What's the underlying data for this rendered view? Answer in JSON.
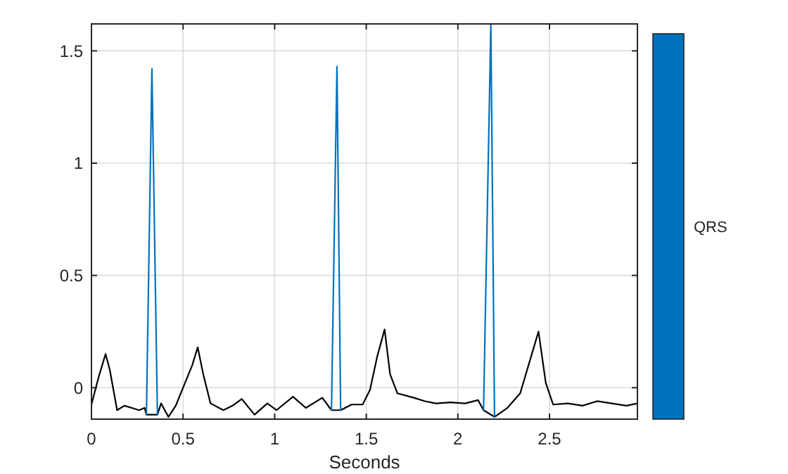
{
  "chart_data": {
    "type": "line",
    "xlabel": "Seconds",
    "xlim": [
      0,
      2.98
    ],
    "ylim": [
      -0.14,
      1.62
    ],
    "xticks": [
      0,
      0.5,
      1,
      1.5,
      2,
      2.5
    ],
    "yticks": [
      0,
      0.5,
      1,
      1.5
    ],
    "grid": true,
    "legend": "right",
    "line_style": "solid",
    "marker": "none",
    "series": [
      {
        "color": "#000000",
        "x": [
          0,
          0.04,
          0.077,
          0.1,
          0.14,
          0.18,
          0.22,
          0.26,
          0.29,
          0.3,
          0.36,
          0.38,
          0.42,
          0.46,
          0.51,
          0.55,
          0.58,
          0.61,
          0.65,
          0.72,
          0.77,
          0.82,
          0.89,
          0.96,
          1.01,
          1.1,
          1.17,
          1.26,
          1.31,
          1.36,
          1.42,
          1.48,
          1.52,
          1.56,
          1.6,
          1.63,
          1.67,
          1.76,
          1.82,
          1.88,
          1.96,
          2.04,
          2.11,
          2.14,
          2.2,
          2.27,
          2.34,
          2.4,
          2.44,
          2.48,
          2.52,
          2.6,
          2.68,
          2.76,
          2.84,
          2.92,
          2.98
        ],
        "values": [
          -0.075,
          0.05,
          0.15,
          0.08,
          -0.1,
          -0.08,
          -0.09,
          -0.1,
          -0.09,
          -0.12,
          -0.12,
          -0.07,
          -0.13,
          -0.08,
          0.02,
          0.1,
          0.18,
          0.06,
          -0.07,
          -0.1,
          -0.08,
          -0.05,
          -0.12,
          -0.07,
          -0.1,
          -0.04,
          -0.09,
          -0.045,
          -0.1,
          -0.1,
          -0.075,
          -0.075,
          -0.01,
          0.14,
          0.26,
          0.06,
          -0.025,
          -0.045,
          -0.06,
          -0.07,
          -0.065,
          -0.07,
          -0.055,
          -0.1,
          -0.13,
          -0.09,
          -0.025,
          0.14,
          0.25,
          0.02,
          -0.075,
          -0.07,
          -0.08,
          -0.06,
          -0.07,
          -0.08,
          -0.07
        ]
      },
      {
        "name": "QRS",
        "color": "#0072bd",
        "x": [
          0.3,
          0.33,
          0.36,
          0.8,
          1.31,
          1.34,
          1.36,
          1.8,
          2.14,
          2.18,
          2.2
        ],
        "values": [
          -0.12,
          1.42,
          -0.12,
          null,
          -0.1,
          1.43,
          -0.1,
          null,
          -0.1,
          1.62,
          -0.13
        ]
      }
    ]
  }
}
